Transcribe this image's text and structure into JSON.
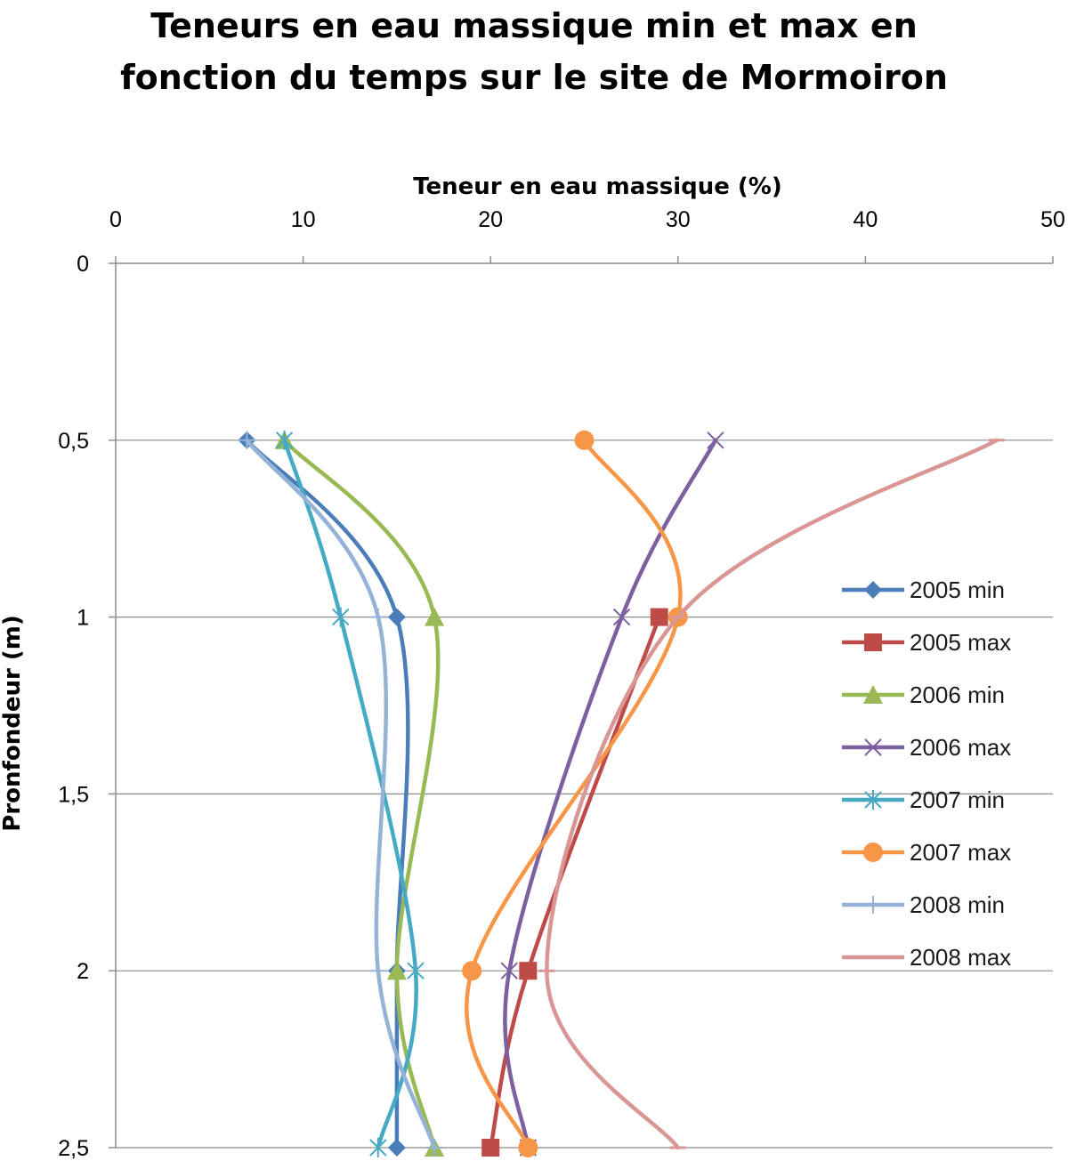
{
  "chart_data": {
    "type": "scatter",
    "title_lines": [
      "Teneurs en eau massique min et max en",
      "fonction du temps sur le site de Mormoiron"
    ],
    "xlabel": "Teneur en eau massique  (%)",
    "ylabel": "Pronfondeur (m)",
    "xlim": [
      0,
      50
    ],
    "ylim": [
      0,
      2.5
    ],
    "y_inverted": true,
    "x_axis_position": "top",
    "smooth_lines": true,
    "grid": "horizontal",
    "x_ticks": [
      "0",
      "10",
      "20",
      "30",
      "40",
      "50"
    ],
    "y_ticks": [
      "0",
      "0,5",
      "1",
      "1,5",
      "2",
      "2,5"
    ],
    "legend_position": "right",
    "series": [
      {
        "name": "2005 min",
        "color": "#4a7ebb",
        "marker": "diamond",
        "points": [
          [
            7,
            0.5
          ],
          [
            15,
            1
          ],
          [
            15,
            2
          ],
          [
            15,
            2.5
          ]
        ]
      },
      {
        "name": "2005 max",
        "color": "#be4b48",
        "marker": "square",
        "points": [
          [
            29,
            1
          ],
          [
            22,
            2
          ],
          [
            20,
            2.5
          ]
        ]
      },
      {
        "name": "2006 min",
        "color": "#98b954",
        "marker": "triangle",
        "points": [
          [
            9,
            0.5
          ],
          [
            17,
            1
          ],
          [
            15,
            2
          ],
          [
            17,
            2.5
          ]
        ]
      },
      {
        "name": "2006 max",
        "color": "#7d60a0",
        "marker": "x",
        "points": [
          [
            32,
            0.5
          ],
          [
            27,
            1
          ],
          [
            21,
            2
          ],
          [
            22,
            2.5
          ]
        ]
      },
      {
        "name": "2007 min",
        "color": "#46aac5",
        "marker": "star",
        "points": [
          [
            9,
            0.5
          ],
          [
            12,
            1
          ],
          [
            16,
            2
          ],
          [
            14,
            2.5
          ]
        ]
      },
      {
        "name": "2007 max",
        "color": "#f79646",
        "marker": "circle",
        "points": [
          [
            25,
            0.5
          ],
          [
            30,
            1
          ],
          [
            19,
            2
          ],
          [
            22,
            2.5
          ]
        ]
      },
      {
        "name": "2008 min",
        "color": "#95b3d7",
        "marker": "plus",
        "points": [
          [
            7,
            0.5
          ],
          [
            14,
            1
          ],
          [
            14,
            2
          ],
          [
            17,
            2.5
          ]
        ]
      },
      {
        "name": "2008 max",
        "color": "#d99694",
        "marker": "dash",
        "points": [
          [
            47,
            0.5
          ],
          [
            30,
            1
          ],
          [
            23,
            2
          ],
          [
            30,
            2.5
          ]
        ]
      }
    ]
  }
}
